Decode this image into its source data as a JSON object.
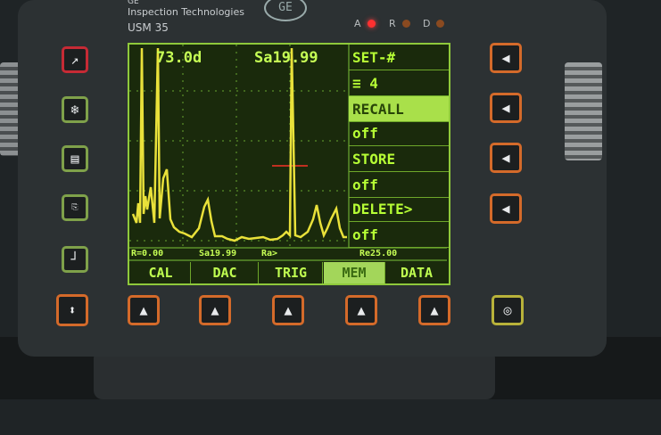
{
  "brand": {
    "company": "GE",
    "division": "Inspection Technologies",
    "model": "USM 35"
  },
  "leds": [
    "A",
    "R",
    "D"
  ],
  "screen": {
    "readout_left": "73.0d",
    "readout_right": "Sa19.99",
    "status_line": {
      "left": "R=0.00",
      "mid": "Sa19.99",
      "mid2": "Ra>",
      "right": "Re25.00"
    },
    "menu": {
      "title": "SET-#",
      "title_value": "4",
      "items": [
        {
          "label": "RECALL",
          "value": "off"
        },
        {
          "label": "STORE",
          "value": "off"
        },
        {
          "label": "DELETE>",
          "value": "off"
        }
      ]
    },
    "tabs": [
      "CAL",
      "DAC",
      "TRIG",
      "MEM",
      "DATA"
    ],
    "active_tab": "MEM",
    "waveform_color": "#e9e13a"
  },
  "colors": {
    "orange": "#d46a2a",
    "green_key": "#7fa14a",
    "red_key": "#c62a35",
    "screen_green": "#b7ff35"
  }
}
